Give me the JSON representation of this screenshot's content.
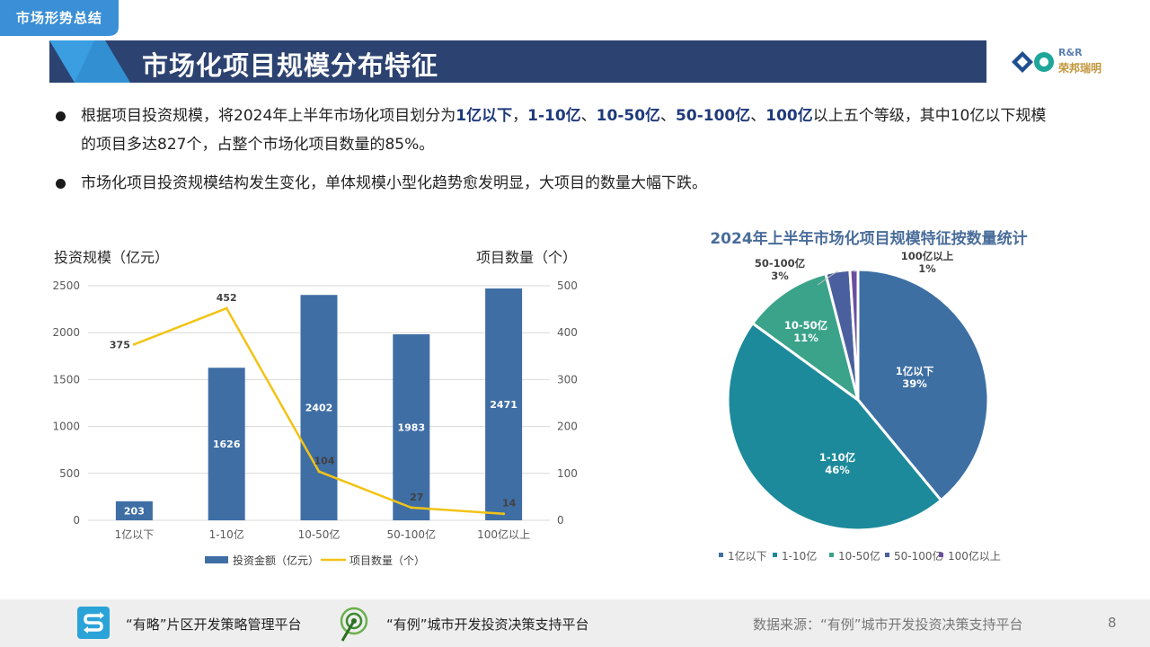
{
  "header": {
    "section_tab": "市场形势总结",
    "title": "市场化项目规模分布特征",
    "logo_line1": "R&R",
    "logo_line2": "荣邦瑞明"
  },
  "bullets": [
    {
      "parts": [
        {
          "t": "根据项目投资规模，将2024年上半年市场化项目划分为",
          "h": false
        },
        {
          "t": "1亿以下",
          "h": true
        },
        {
          "t": "，",
          "h": false
        },
        {
          "t": "1-10亿",
          "h": true
        },
        {
          "t": "、",
          "h": false
        },
        {
          "t": "10-50亿",
          "h": true
        },
        {
          "t": "、",
          "h": false
        },
        {
          "t": "50-100亿",
          "h": true
        },
        {
          "t": "、",
          "h": false
        },
        {
          "t": "100亿",
          "h": true
        },
        {
          "t": "以上五个等级，其中10亿以下规模",
          "h": false
        }
      ],
      "line2": "的项目多达827个，占整个市场化项目数量的85%。"
    },
    {
      "text": "市场化项目投资规模结构发生变化，单体规模小型化趋势愈发明显，大项目的数量大幅下跌。"
    }
  ],
  "chart_data": [
    {
      "type": "bar",
      "categories": [
        "1亿以下",
        "1-10亿",
        "10-50亿",
        "50-100亿",
        "100亿以上"
      ],
      "series": [
        {
          "name": "投资金额（亿元）",
          "type": "bar",
          "axis": "left",
          "values": [
            203,
            1626,
            2402,
            1983,
            2471
          ],
          "color": "#3f6ea5"
        },
        {
          "name": "项目数量（个）",
          "type": "line",
          "axis": "right",
          "values": [
            375,
            452,
            104,
            27,
            14
          ],
          "color": "#f2c315"
        }
      ],
      "ylabel_left": "投资规模（亿元）",
      "ylabel_right": "项目数量（个）",
      "ylim_left": [
        0,
        2500
      ],
      "ylim_right": [
        0,
        500
      ],
      "yticks_left": [
        "0",
        "500",
        "1000",
        "1500",
        "2000",
        "2500"
      ],
      "yticks_right": [
        "0",
        "100",
        "200",
        "300",
        "400",
        "500"
      ],
      "legend_position": "bottom"
    },
    {
      "type": "pie",
      "title": "2024年上半年市场化项目规模特征按数量统计",
      "labels": [
        "1亿以下",
        "1-10亿",
        "10-50亿",
        "50-100亿",
        "100亿以上"
      ],
      "values": [
        39,
        46,
        11,
        3,
        1
      ],
      "value_labels": [
        "39%",
        "46%",
        "11%",
        "3%",
        "1%"
      ],
      "colors": [
        "#3d6fa3",
        "#1d8a9b",
        "#3aa38a",
        "#4a5f9e",
        "#6a4fa0"
      ],
      "legend_position": "bottom"
    }
  ],
  "footer": {
    "platform1": "“有略”片区开发策略管理平台",
    "platform2": "“有例”城市开发投资决策支持平台",
    "source": "数据来源：“有例”城市开发投资决策支持平台",
    "page_number": "8"
  }
}
